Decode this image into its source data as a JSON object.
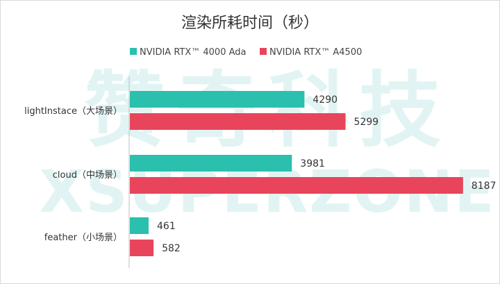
{
  "chart_data": {
    "type": "bar",
    "orientation": "horizontal",
    "title": "渲染所耗时间（秒）",
    "categories": [
      "lightInstace（大场景）",
      "cloud（中场景）",
      "feather（小场景）"
    ],
    "series": [
      {
        "name": "NVIDIA RTX™ 4000 Ada",
        "values": [
          4290,
          3981,
          461
        ],
        "color": "#2bbfae"
      },
      {
        "name": "NVIDIA RTX™ A4500",
        "values": [
          5299,
          8187,
          582
        ],
        "color": "#e8455c"
      }
    ],
    "xlim": [
      0,
      8600
    ],
    "legend": "top",
    "grid": false,
    "watermark": [
      "赞奇科技",
      "XSUPERZONE"
    ]
  }
}
